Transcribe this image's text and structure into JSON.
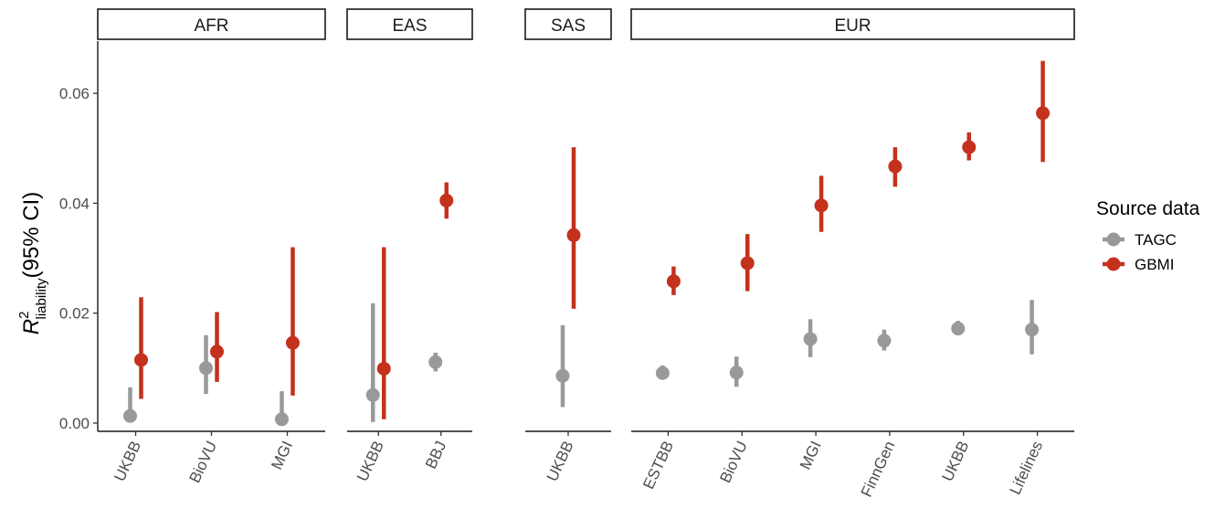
{
  "chart_data": {
    "type": "scatter",
    "y_axis": {
      "label_main": "R",
      "label_sup": "2",
      "label_sub": "liability",
      "label_rest": "(95% CI)",
      "ticks": [
        0.0,
        0.02,
        0.04,
        0.06
      ],
      "tick_labels": [
        "0.00",
        "0.02",
        "0.04",
        "0.06"
      ],
      "ylim": [
        -0.0015,
        0.0695
      ]
    },
    "grid": false,
    "legend": {
      "title": "Source data",
      "placement": "right",
      "entries": [
        "TAGC",
        "GBMI"
      ]
    },
    "series_colors": {
      "TAGC": "#999999",
      "GBMI": "#c4311c"
    },
    "facets": [
      {
        "label": "AFR",
        "categories": [
          "UKBB",
          "BioVU",
          "MGI"
        ],
        "points": [
          {
            "cohort": "UKBB",
            "series": "TAGC",
            "y": 0.0013,
            "lo": 0.0002,
            "hi": 0.0065
          },
          {
            "cohort": "UKBB",
            "series": "GBMI",
            "y": 0.0115,
            "lo": 0.0044,
            "hi": 0.0229
          },
          {
            "cohort": "BioVU",
            "series": "TAGC",
            "y": 0.01,
            "lo": 0.0053,
            "hi": 0.016
          },
          {
            "cohort": "BioVU",
            "series": "GBMI",
            "y": 0.013,
            "lo": 0.0075,
            "hi": 0.0202
          },
          {
            "cohort": "MGI",
            "series": "TAGC",
            "y": 0.0007,
            "lo": 0.0,
            "hi": 0.0058
          },
          {
            "cohort": "MGI",
            "series": "GBMI",
            "y": 0.0146,
            "lo": 0.005,
            "hi": 0.032
          }
        ]
      },
      {
        "label": "EAS",
        "categories": [
          "UKBB",
          "BBJ"
        ],
        "points": [
          {
            "cohort": "UKBB",
            "series": "TAGC",
            "y": 0.0051,
            "lo": 0.0002,
            "hi": 0.0218
          },
          {
            "cohort": "UKBB",
            "series": "GBMI",
            "y": 0.0099,
            "lo": 0.0007,
            "hi": 0.032
          },
          {
            "cohort": "BBJ",
            "series": "TAGC",
            "y": 0.0111,
            "lo": 0.0094,
            "hi": 0.0128
          },
          {
            "cohort": "BBJ",
            "series": "GBMI",
            "y": 0.0405,
            "lo": 0.0372,
            "hi": 0.0438
          }
        ]
      },
      {
        "label": "SAS",
        "categories": [
          "UKBB"
        ],
        "points": [
          {
            "cohort": "UKBB",
            "series": "TAGC",
            "y": 0.0086,
            "lo": 0.0029,
            "hi": 0.0178
          },
          {
            "cohort": "UKBB",
            "series": "GBMI",
            "y": 0.0342,
            "lo": 0.0208,
            "hi": 0.0502
          }
        ]
      },
      {
        "label": "EUR",
        "categories": [
          "ESTBB",
          "BioVU",
          "MGI",
          "FinnGen",
          "UKBB",
          "Lifelines"
        ],
        "points": [
          {
            "cohort": "ESTBB",
            "series": "TAGC",
            "y": 0.0091,
            "lo": 0.008,
            "hi": 0.0105
          },
          {
            "cohort": "ESTBB",
            "series": "GBMI",
            "y": 0.0258,
            "lo": 0.0233,
            "hi": 0.0285
          },
          {
            "cohort": "BioVU",
            "series": "TAGC",
            "y": 0.0092,
            "lo": 0.0066,
            "hi": 0.0121
          },
          {
            "cohort": "BioVU",
            "series": "GBMI",
            "y": 0.0291,
            "lo": 0.024,
            "hi": 0.0344
          },
          {
            "cohort": "MGI",
            "series": "TAGC",
            "y": 0.0153,
            "lo": 0.012,
            "hi": 0.0189
          },
          {
            "cohort": "MGI",
            "series": "GBMI",
            "y": 0.0396,
            "lo": 0.0348,
            "hi": 0.045
          },
          {
            "cohort": "FinnGen",
            "series": "TAGC",
            "y": 0.015,
            "lo": 0.0132,
            "hi": 0.017
          },
          {
            "cohort": "FinnGen",
            "series": "GBMI",
            "y": 0.0467,
            "lo": 0.043,
            "hi": 0.0502
          },
          {
            "cohort": "UKBB",
            "series": "TAGC",
            "y": 0.0172,
            "lo": 0.016,
            "hi": 0.0186
          },
          {
            "cohort": "UKBB",
            "series": "GBMI",
            "y": 0.0502,
            "lo": 0.0478,
            "hi": 0.0529
          },
          {
            "cohort": "Lifelines",
            "series": "TAGC",
            "y": 0.017,
            "lo": 0.0125,
            "hi": 0.0224
          },
          {
            "cohort": "Lifelines",
            "series": "GBMI",
            "y": 0.0564,
            "lo": 0.0475,
            "hi": 0.0659
          }
        ]
      }
    ]
  }
}
